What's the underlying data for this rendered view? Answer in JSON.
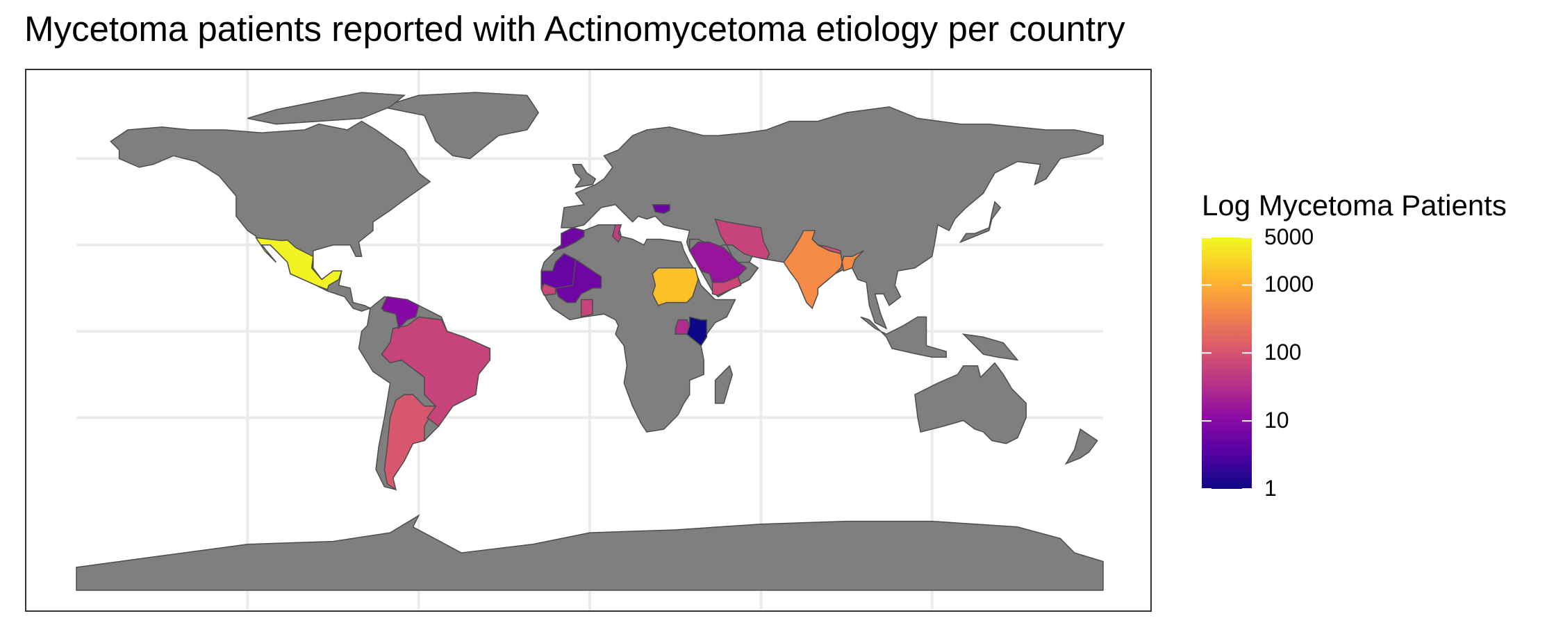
{
  "title": "Mycetoma patients reported with Actinomycetoma etiology per country",
  "legend": {
    "title": "Log Mycetoma Patients",
    "scale": "log",
    "palette": "plasma",
    "ticks": [
      {
        "label": "5000",
        "value": 5000
      },
      {
        "label": "1000",
        "value": 1000
      },
      {
        "label": "100",
        "value": 100
      },
      {
        "label": "10",
        "value": 10
      },
      {
        "label": "1",
        "value": 1
      }
    ],
    "range": [
      1,
      5000
    ]
  },
  "colors": {
    "land": "#7f7f7f",
    "border": "#4d4d4d",
    "grid": "#ebebeb",
    "panel_border": "#333333"
  },
  "map_data": {
    "type": "choropleth",
    "projection": "equirectangular",
    "countries": [
      {
        "name": "Mexico",
        "value": 4500
      },
      {
        "name": "Sudan",
        "value": 1500
      },
      {
        "name": "India",
        "value": 450
      },
      {
        "name": "Argentina",
        "value": 110
      },
      {
        "name": "Brazil",
        "value": 60
      },
      {
        "name": "Saudi Arabia",
        "value": 15
      },
      {
        "name": "Iran",
        "value": 60
      },
      {
        "name": "Yemen",
        "value": 70
      },
      {
        "name": "Venezuela",
        "value": 10
      },
      {
        "name": "Mali",
        "value": 6
      },
      {
        "name": "Mauritania",
        "value": 5
      },
      {
        "name": "Morocco",
        "value": 6
      },
      {
        "name": "Senegal",
        "value": 70
      },
      {
        "name": "Ghana",
        "value": 60
      },
      {
        "name": "Tunisia",
        "value": 50
      },
      {
        "name": "Uganda",
        "value": 30
      },
      {
        "name": "Kenya",
        "value": 1
      },
      {
        "name": "Bulgaria",
        "value": 5
      },
      {
        "name": "Nepal",
        "value": 90
      }
    ]
  }
}
